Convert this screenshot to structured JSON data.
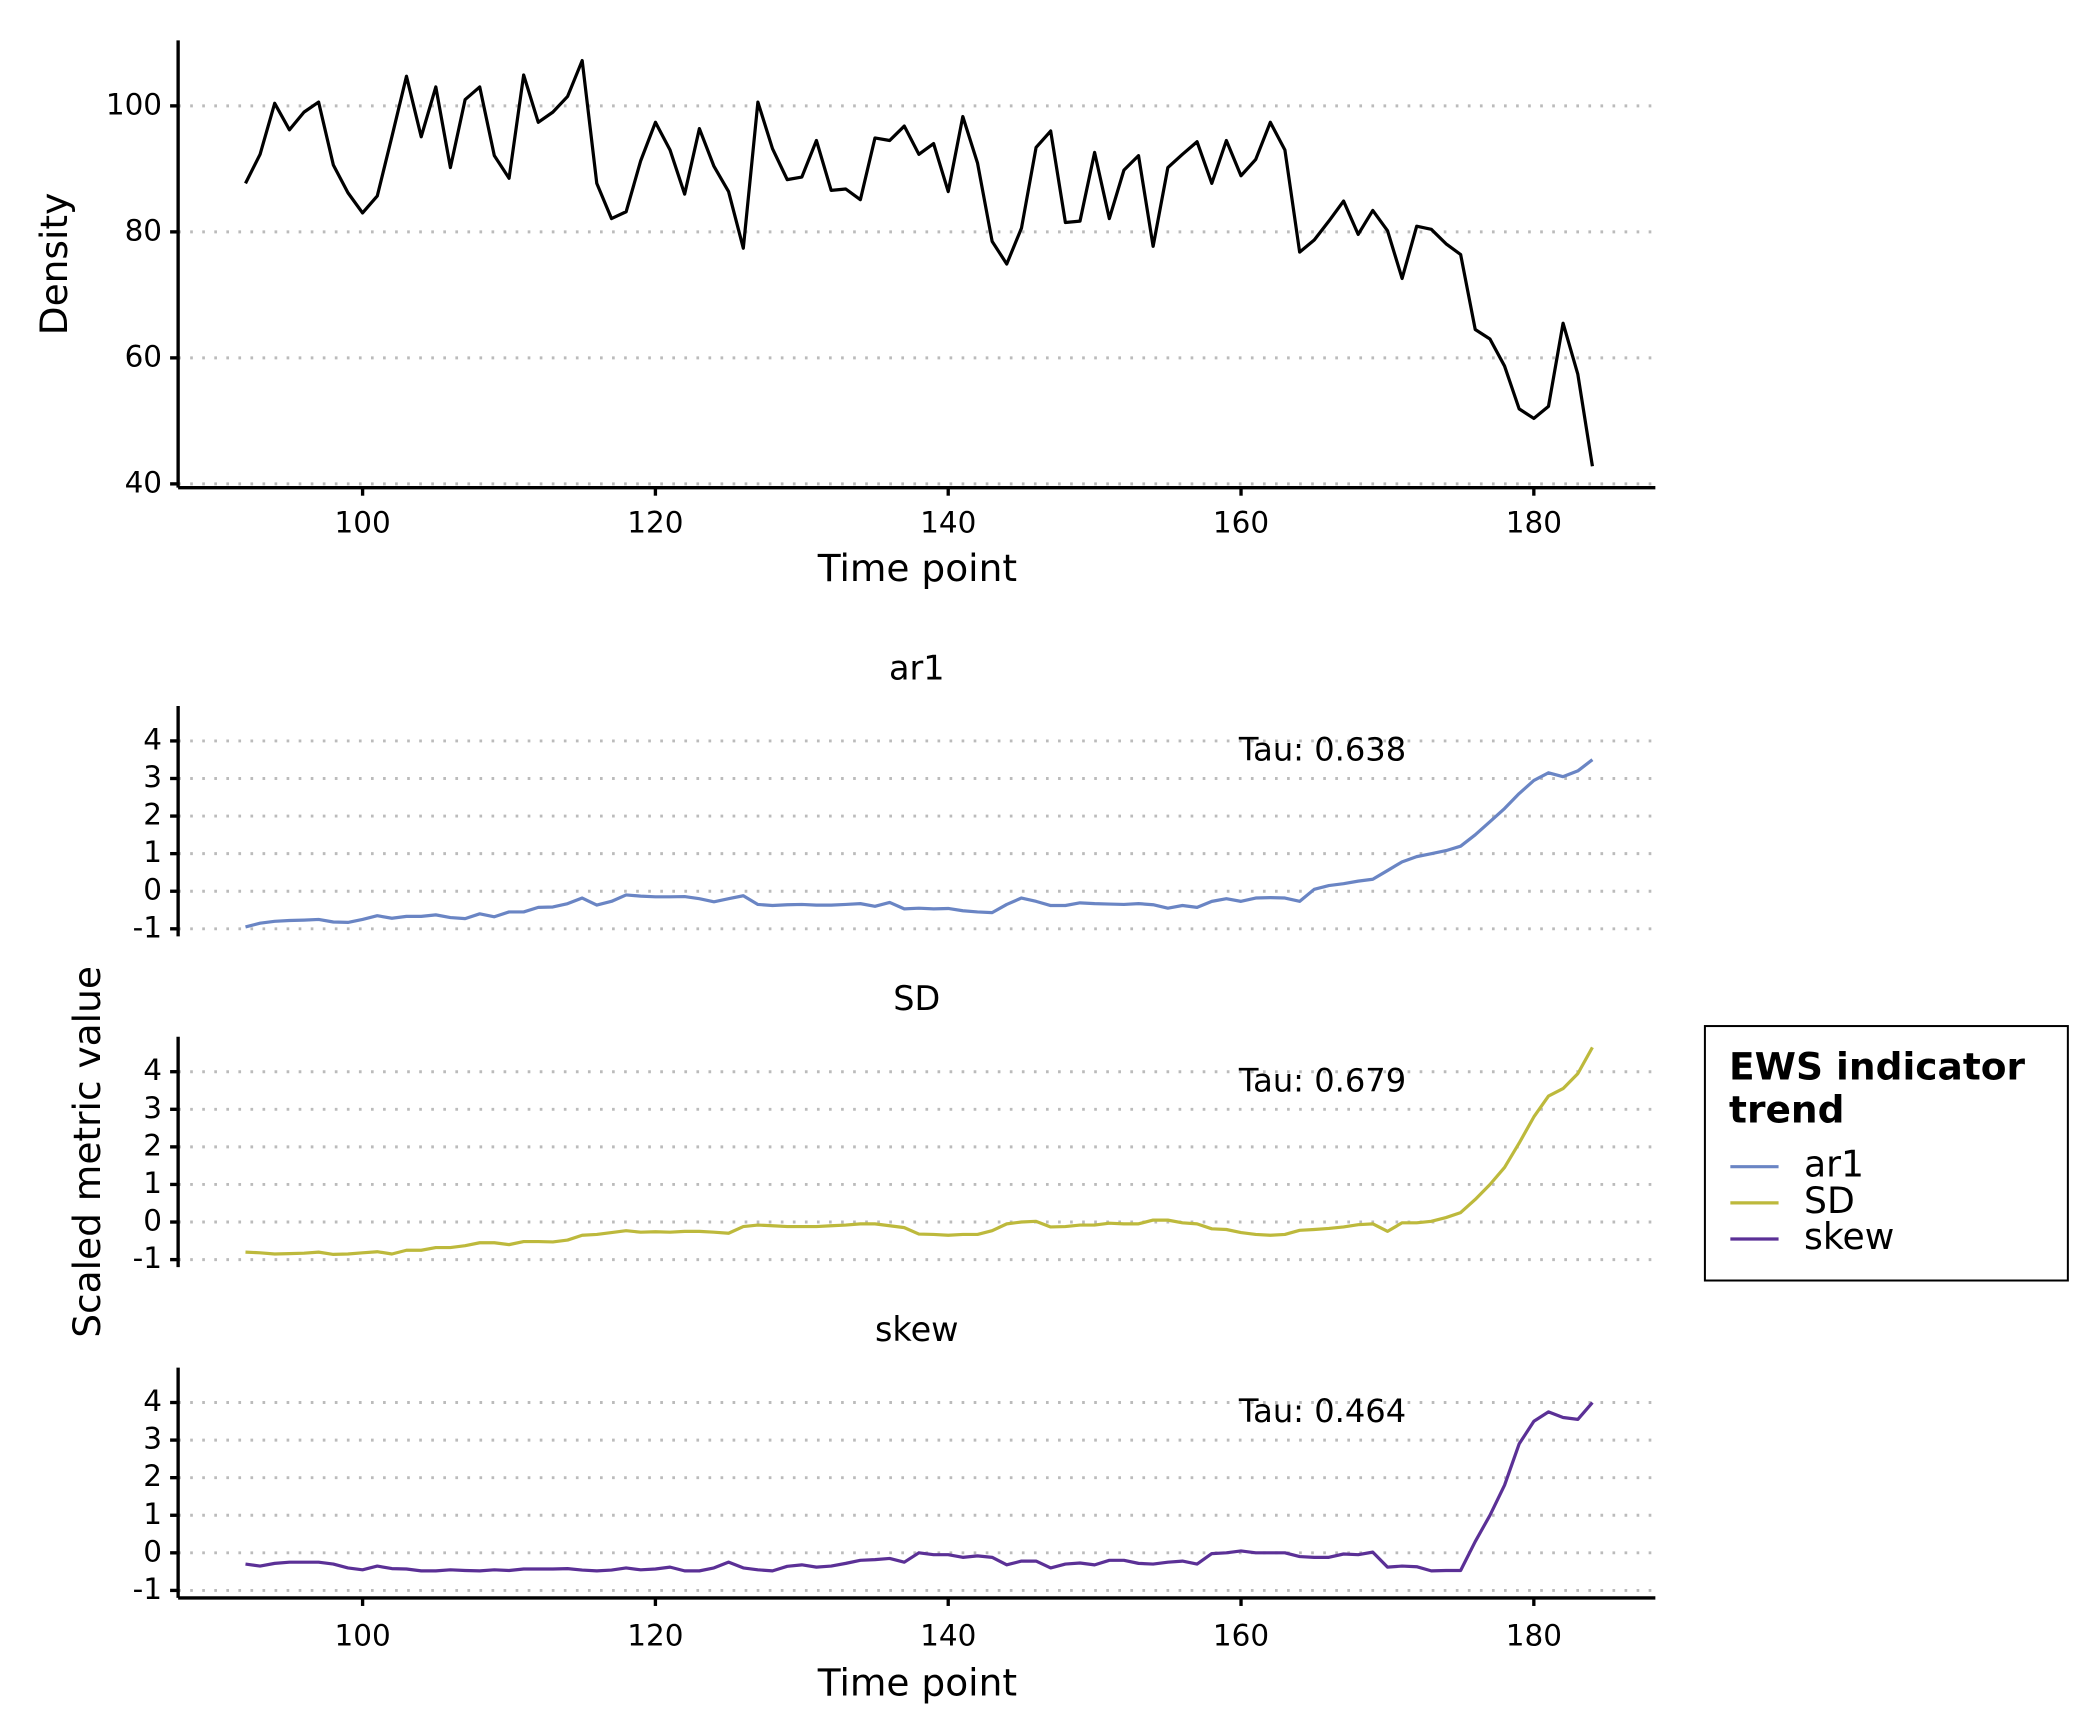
{
  "chart_data": [
    {
      "type": "line",
      "xlabel": "Time point",
      "ylabel": "Density",
      "color": "#000000",
      "x": [
        92,
        93,
        94,
        95,
        96,
        97,
        98,
        99,
        100,
        101,
        102,
        103,
        104,
        105,
        106,
        107,
        108,
        109,
        110,
        111,
        112,
        113,
        114,
        115,
        116,
        117,
        118,
        119,
        120,
        121,
        122,
        123,
        124,
        125,
        126,
        127,
        128,
        129,
        130,
        131,
        132,
        133,
        134,
        135,
        136,
        137,
        138,
        139,
        140,
        141,
        142,
        143,
        144,
        145,
        146,
        147,
        148,
        149,
        150,
        151,
        152,
        153,
        154,
        155,
        156,
        157,
        158,
        159,
        160,
        161,
        162,
        163,
        164,
        165,
        166,
        167,
        168,
        169,
        170,
        171,
        172,
        173,
        174,
        175,
        176,
        177,
        178,
        179,
        180,
        181,
        182,
        183,
        184
      ],
      "values": [
        87.7,
        92.3,
        100.4,
        96.2,
        99,
        100.6,
        90.6,
        86.2,
        83,
        85.7,
        95.1,
        104.7,
        95.1,
        103,
        90.2,
        101,
        103,
        92.1,
        88.5,
        104.9,
        97.4,
        99,
        101.5,
        107.2,
        87.7,
        82.1,
        83.2,
        91.3,
        97.4,
        93,
        86,
        96.4,
        90.4,
        86.4,
        77.4,
        100.6,
        93.2,
        88.3,
        88.7,
        94.5,
        86.6,
        86.8,
        85.1,
        94.9,
        94.5,
        96.8,
        92.3,
        94,
        86.4,
        98.3,
        90.9,
        78.5,
        74.9,
        80.6,
        93.4,
        96,
        81.5,
        81.7,
        92.6,
        82.1,
        89.8,
        92.1,
        77.7,
        90.2,
        92.3,
        94.3,
        87.7,
        94.5,
        88.9,
        91.5,
        97.4,
        93,
        76.8,
        78.7,
        81.7,
        84.9,
        79.6,
        83.4,
        80.2,
        72.6,
        80.9,
        80.4,
        78.1,
        76.4,
        64.5,
        63,
        58.7,
        51.9,
        50.4,
        52.3,
        65.5,
        57.4,
        42.8
      ],
      "xlim": [
        87.4,
        188.3
      ],
      "xticks": [
        100,
        120,
        140,
        160,
        180
      ],
      "ylim": [
        39.4,
        110.4
      ],
      "yticks": [
        40,
        60,
        80,
        100
      ],
      "grid": true
    },
    {
      "type": "line",
      "facets": true,
      "xlabel": "Time point",
      "ylabel": "Scaled metric value",
      "legend_title": "EWS indicator trend",
      "legend_position": "right",
      "x": [
        92,
        93,
        94,
        95,
        96,
        97,
        98,
        99,
        100,
        101,
        102,
        103,
        104,
        105,
        106,
        107,
        108,
        109,
        110,
        111,
        112,
        113,
        114,
        115,
        116,
        117,
        118,
        119,
        120,
        121,
        122,
        123,
        124,
        125,
        126,
        127,
        128,
        129,
        130,
        131,
        132,
        133,
        134,
        135,
        136,
        137,
        138,
        139,
        140,
        141,
        142,
        143,
        144,
        145,
        146,
        147,
        148,
        149,
        150,
        151,
        152,
        153,
        154,
        155,
        156,
        157,
        158,
        159,
        160,
        161,
        162,
        163,
        164,
        165,
        166,
        167,
        168,
        169,
        170,
        171,
        172,
        173,
        174,
        175,
        176,
        177,
        178,
        179,
        180,
        181,
        182,
        183,
        184
      ],
      "xlim": [
        87.4,
        188.3
      ],
      "xticks": [
        100,
        120,
        140,
        160,
        180
      ],
      "ylim": [
        -1.2,
        4.93
      ],
      "yticks": [
        -1,
        0,
        1,
        2,
        3,
        4
      ],
      "grid": true,
      "series": [
        {
          "name": "ar1",
          "color": "#6a85c4",
          "annotation": "Tau: 0.638",
          "values": [
            -0.95,
            -0.85,
            -0.8,
            -0.78,
            -0.77,
            -0.75,
            -0.82,
            -0.83,
            -0.75,
            -0.65,
            -0.72,
            -0.67,
            -0.67,
            -0.63,
            -0.7,
            -0.73,
            -0.6,
            -0.68,
            -0.55,
            -0.55,
            -0.43,
            -0.42,
            -0.33,
            -0.18,
            -0.37,
            -0.27,
            -0.1,
            -0.13,
            -0.15,
            -0.15,
            -0.14,
            -0.2,
            -0.28,
            -0.2,
            -0.12,
            -0.35,
            -0.38,
            -0.36,
            -0.35,
            -0.37,
            -0.37,
            -0.35,
            -0.33,
            -0.4,
            -0.3,
            -0.47,
            -0.45,
            -0.47,
            -0.46,
            -0.52,
            -0.55,
            -0.57,
            -0.35,
            -0.18,
            -0.27,
            -0.38,
            -0.38,
            -0.31,
            -0.33,
            -0.34,
            -0.35,
            -0.33,
            -0.36,
            -0.45,
            -0.38,
            -0.43,
            -0.27,
            -0.2,
            -0.27,
            -0.18,
            -0.17,
            -0.18,
            -0.27,
            0.05,
            0.15,
            0.2,
            0.27,
            0.32,
            0.55,
            0.78,
            0.92,
            1.0,
            1.08,
            1.2,
            1.5,
            1.85,
            2.2,
            2.6,
            2.95,
            3.15,
            3.05,
            3.2,
            3.5
          ]
        },
        {
          "name": "SD",
          "color": "#bdb93c",
          "annotation": "Tau: 0.679",
          "values": [
            -0.8,
            -0.82,
            -0.85,
            -0.84,
            -0.83,
            -0.8,
            -0.86,
            -0.85,
            -0.82,
            -0.79,
            -0.85,
            -0.75,
            -0.75,
            -0.68,
            -0.68,
            -0.63,
            -0.55,
            -0.55,
            -0.6,
            -0.52,
            -0.52,
            -0.53,
            -0.48,
            -0.35,
            -0.33,
            -0.28,
            -0.23,
            -0.27,
            -0.26,
            -0.27,
            -0.25,
            -0.25,
            -0.27,
            -0.3,
            -0.12,
            -0.08,
            -0.1,
            -0.12,
            -0.12,
            -0.12,
            -0.1,
            -0.08,
            -0.05,
            -0.05,
            -0.1,
            -0.15,
            -0.32,
            -0.33,
            -0.35,
            -0.33,
            -0.33,
            -0.23,
            -0.05,
            0.0,
            0.02,
            -0.13,
            -0.12,
            -0.08,
            -0.08,
            -0.03,
            -0.05,
            -0.05,
            0.05,
            0.05,
            -0.02,
            -0.05,
            -0.18,
            -0.2,
            -0.28,
            -0.33,
            -0.35,
            -0.33,
            -0.22,
            -0.2,
            -0.17,
            -0.13,
            -0.07,
            -0.05,
            -0.25,
            -0.02,
            -0.02,
            0.02,
            0.12,
            0.25,
            0.6,
            1.0,
            1.45,
            2.1,
            2.8,
            3.35,
            3.55,
            3.95,
            4.65
          ]
        },
        {
          "name": "skew",
          "color": "#5b3096",
          "annotation": "Tau: 0.464",
          "values": [
            -0.3,
            -0.35,
            -0.28,
            -0.25,
            -0.25,
            -0.25,
            -0.3,
            -0.4,
            -0.45,
            -0.35,
            -0.42,
            -0.43,
            -0.48,
            -0.48,
            -0.45,
            -0.47,
            -0.48,
            -0.45,
            -0.47,
            -0.43,
            -0.43,
            -0.43,
            -0.42,
            -0.46,
            -0.48,
            -0.46,
            -0.4,
            -0.45,
            -0.43,
            -0.38,
            -0.48,
            -0.48,
            -0.4,
            -0.25,
            -0.4,
            -0.45,
            -0.48,
            -0.36,
            -0.32,
            -0.38,
            -0.35,
            -0.28,
            -0.2,
            -0.18,
            -0.15,
            -0.25,
            0.0,
            -0.05,
            -0.05,
            -0.12,
            -0.08,
            -0.12,
            -0.32,
            -0.22,
            -0.22,
            -0.4,
            -0.3,
            -0.27,
            -0.32,
            -0.2,
            -0.2,
            -0.28,
            -0.3,
            -0.25,
            -0.22,
            -0.3,
            -0.02,
            0.0,
            0.05,
            0.0,
            0.0,
            0.0,
            -0.1,
            -0.12,
            -0.12,
            -0.03,
            -0.05,
            0.02,
            -0.38,
            -0.35,
            -0.37,
            -0.48,
            -0.47,
            -0.47,
            0.3,
            1.0,
            1.8,
            2.9,
            3.5,
            3.75,
            3.6,
            3.55,
            4.0
          ]
        }
      ]
    }
  ]
}
